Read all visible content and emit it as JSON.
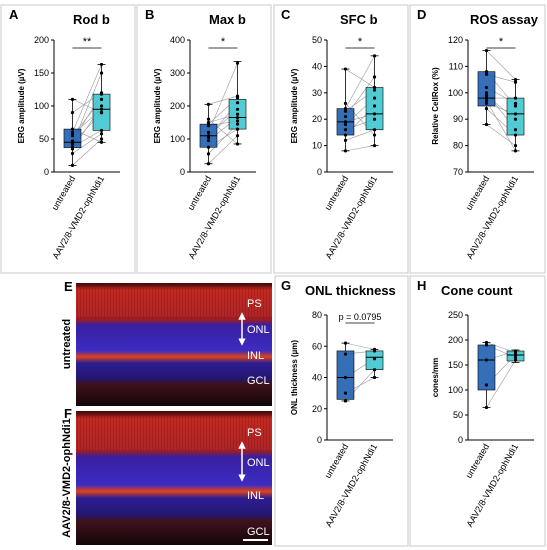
{
  "colors": {
    "untreated_box": "#1f5fb0",
    "treated_box": "#3fc7cf",
    "point": "#000000",
    "pair_line": "#9a9a9a"
  },
  "chart_data": [
    {
      "letter": "A",
      "type": "box",
      "title": "Rod b",
      "ylabel": "ERG amplitude (µV)",
      "ylim": [
        0,
        200
      ],
      "yticks": [
        0,
        50,
        100,
        150,
        200
      ],
      "categories": [
        "untreated",
        "AAV2/8-VMD2-ophNdi1"
      ],
      "significance": "**",
      "boxes": [
        {
          "min": 10,
          "q1": 37,
          "median": 45,
          "q3": 65,
          "max": 110
        },
        {
          "min": 45,
          "q1": 63,
          "median": 95,
          "q3": 118,
          "max": 163
        }
      ],
      "pairs": [
        [
          10,
          50
        ],
        [
          28,
          58
        ],
        [
          35,
          100
        ],
        [
          38,
          63
        ],
        [
          42,
          150
        ],
        [
          43,
          90
        ],
        [
          47,
          118
        ],
        [
          55,
          110
        ],
        [
          57,
          95
        ],
        [
          60,
          163
        ],
        [
          65,
          45
        ],
        [
          90,
          120
        ],
        [
          110,
          90
        ]
      ]
    },
    {
      "letter": "B",
      "type": "box",
      "title": "Max b",
      "ylabel": "ERG amplitude (µV)",
      "ylim": [
        0,
        400
      ],
      "yticks": [
        0,
        100,
        200,
        300,
        400
      ],
      "categories": [
        "untreated",
        "AAV2/8-VMD2-ophNdi1"
      ],
      "significance": "*",
      "boxes": [
        {
          "min": 25,
          "q1": 75,
          "median": 110,
          "q3": 145,
          "max": 205
        },
        {
          "min": 85,
          "q1": 130,
          "median": 165,
          "q3": 220,
          "max": 335
        }
      ],
      "pairs": [
        [
          25,
          110
        ],
        [
          55,
          145
        ],
        [
          75,
          130
        ],
        [
          95,
          165
        ],
        [
          105,
          210
        ],
        [
          110,
          190
        ],
        [
          120,
          330
        ],
        [
          140,
          155
        ],
        [
          145,
          225
        ],
        [
          150,
          175
        ],
        [
          160,
          85
        ],
        [
          205,
          230
        ]
      ]
    },
    {
      "letter": "C",
      "type": "box",
      "title": "SFC b",
      "ylabel": "ERG amplitude (µV)",
      "ylim": [
        0,
        50
      ],
      "yticks": [
        0,
        10,
        20,
        30,
        40,
        50
      ],
      "categories": [
        "untreated",
        "AAV2/8-VMD2-ophNdi1"
      ],
      "significance": "*",
      "boxes": [
        {
          "min": 8,
          "q1": 14,
          "median": 19,
          "q3": 24,
          "max": 39
        },
        {
          "min": 10,
          "q1": 16,
          "median": 22,
          "q3": 32,
          "max": 44
        }
      ],
      "pairs": [
        [
          8,
          10
        ],
        [
          12,
          16
        ],
        [
          14,
          25
        ],
        [
          16,
          20
        ],
        [
          18,
          28
        ],
        [
          19,
          22
        ],
        [
          21,
          36
        ],
        [
          23,
          31
        ],
        [
          24,
          44
        ],
        [
          26,
          14
        ],
        [
          39,
          32
        ]
      ]
    },
    {
      "letter": "D",
      "type": "box",
      "title": "ROS assay",
      "ylabel": "Relative CellRox (%)",
      "ylim": [
        70,
        120
      ],
      "yticks": [
        70,
        80,
        90,
        100,
        110,
        120
      ],
      "categories": [
        "untreated",
        "AAV2/8-VMD2-ophNdi1"
      ],
      "significance": "*",
      "boxes": [
        {
          "min": 88,
          "q1": 95,
          "median": 98,
          "q3": 108,
          "max": 116
        },
        {
          "min": 78,
          "q1": 84,
          "median": 92,
          "q3": 98,
          "max": 105
        }
      ],
      "pairs": [
        [
          88,
          80
        ],
        [
          94,
          84
        ],
        [
          96,
          92
        ],
        [
          97,
          78
        ],
        [
          98,
          98
        ],
        [
          99,
          90
        ],
        [
          100,
          86
        ],
        [
          102,
          96
        ],
        [
          107,
          104
        ],
        [
          108,
          95
        ],
        [
          116,
          105
        ]
      ]
    },
    {
      "letter": "G",
      "type": "box",
      "title": "ONL thickness",
      "ylabel": "ONL thickness (µm)",
      "ylim": [
        0,
        80
      ],
      "yticks": [
        0,
        20,
        40,
        60,
        80
      ],
      "categories": [
        "untreated",
        "AAV2/8-VMD2-ophNdi1"
      ],
      "significance": "p = 0.0795",
      "boxes": [
        {
          "min": 25,
          "q1": 26,
          "median": 40,
          "q3": 57,
          "max": 62
        },
        {
          "min": 40,
          "q1": 45,
          "median": 53,
          "q3": 57,
          "max": 58
        }
      ],
      "pairs": [
        [
          25,
          45
        ],
        [
          30,
          40
        ],
        [
          40,
          52
        ],
        [
          55,
          57
        ],
        [
          62,
          58
        ]
      ]
    },
    {
      "letter": "H",
      "type": "box",
      "title": "Cone count",
      "ylabel": "cones/mm",
      "ylim": [
        0,
        250
      ],
      "yticks": [
        0,
        50,
        100,
        150,
        200,
        250
      ],
      "categories": [
        "untreated",
        "AAV2/8-VMD2-ophNdi1"
      ],
      "significance": "",
      "boxes": [
        {
          "min": 65,
          "q1": 100,
          "median": 160,
          "q3": 190,
          "max": 195
        },
        {
          "min": 155,
          "q1": 158,
          "median": 170,
          "q3": 178,
          "max": 180
        }
      ],
      "pairs": [
        [
          65,
          160
        ],
        [
          110,
          170
        ],
        [
          160,
          178
        ],
        [
          190,
          165
        ],
        [
          195,
          175
        ]
      ]
    }
  ],
  "images": {
    "E": {
      "letter": "E",
      "side_label": "untreated",
      "layers": [
        "PS",
        "ONL",
        "INL",
        "GCL"
      ]
    },
    "F": {
      "letter": "F",
      "side_label": "AAV2/8-VMD2-ophNdi1",
      "layers": [
        "PS",
        "ONL",
        "INL",
        "GCL"
      ]
    }
  }
}
